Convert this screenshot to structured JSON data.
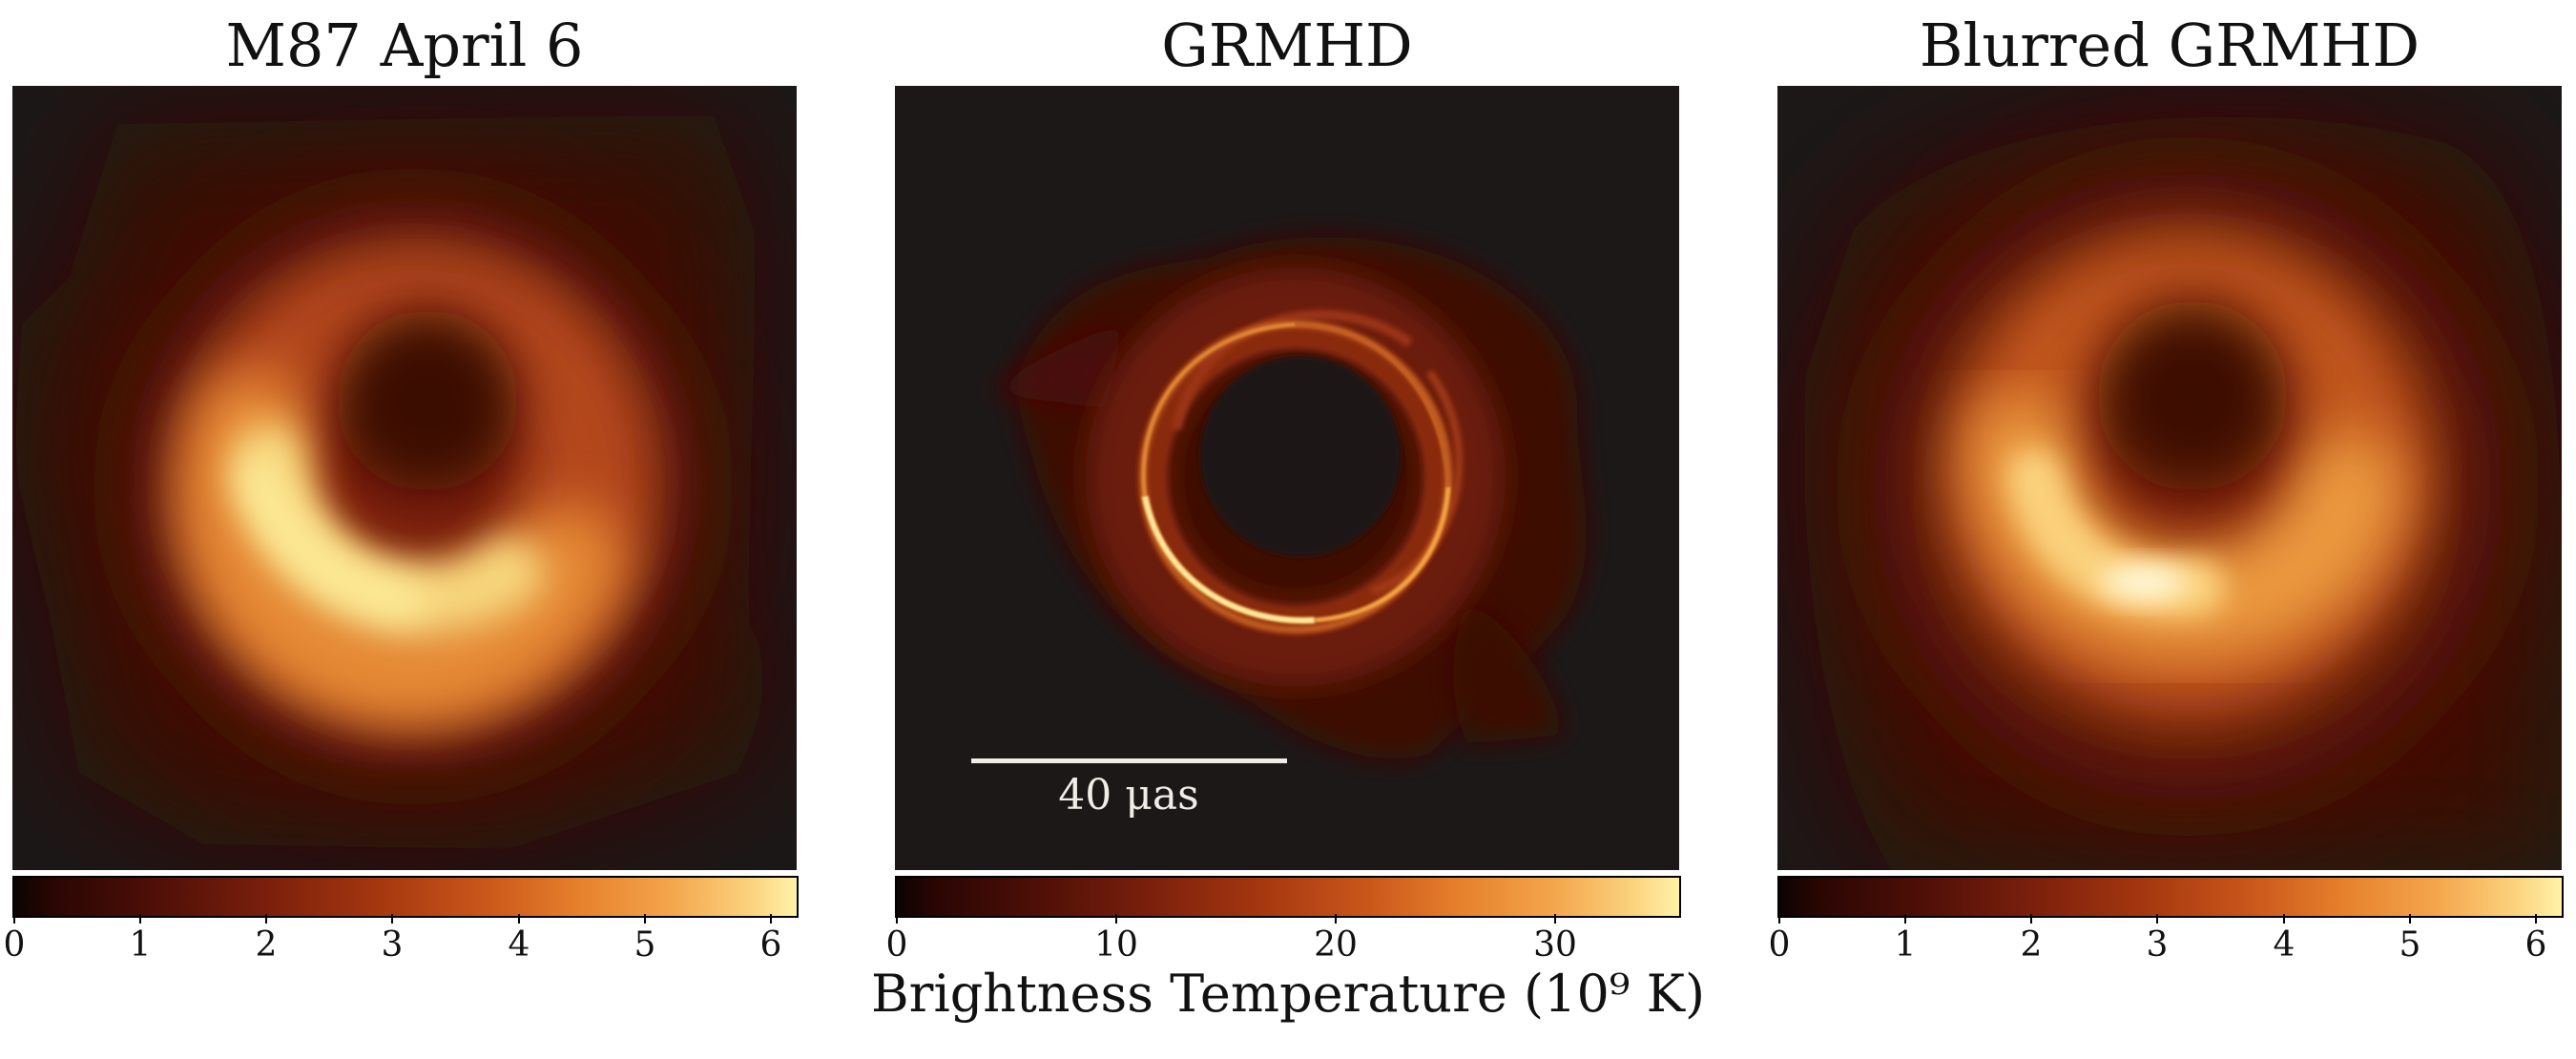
{
  "panels": [
    {
      "title": "M87 April 6",
      "ticks": [
        "0",
        "1",
        "2",
        "3",
        "4",
        "5",
        "6"
      ]
    },
    {
      "title": "GRMHD",
      "ticks": [
        "0",
        "10",
        "20",
        "30"
      ],
      "scale_label": "40 μas"
    },
    {
      "title": "Blurred GRMHD",
      "ticks": [
        "0",
        "1",
        "2",
        "3",
        "4",
        "5",
        "6"
      ]
    }
  ],
  "colorbar_label": "Brightness Temperature (10⁹ K)",
  "colormap": [
    "#0b0402",
    "#4e0f07",
    "#a3360f",
    "#e6802c",
    "#fbd27d",
    "#fff2a8"
  ]
}
